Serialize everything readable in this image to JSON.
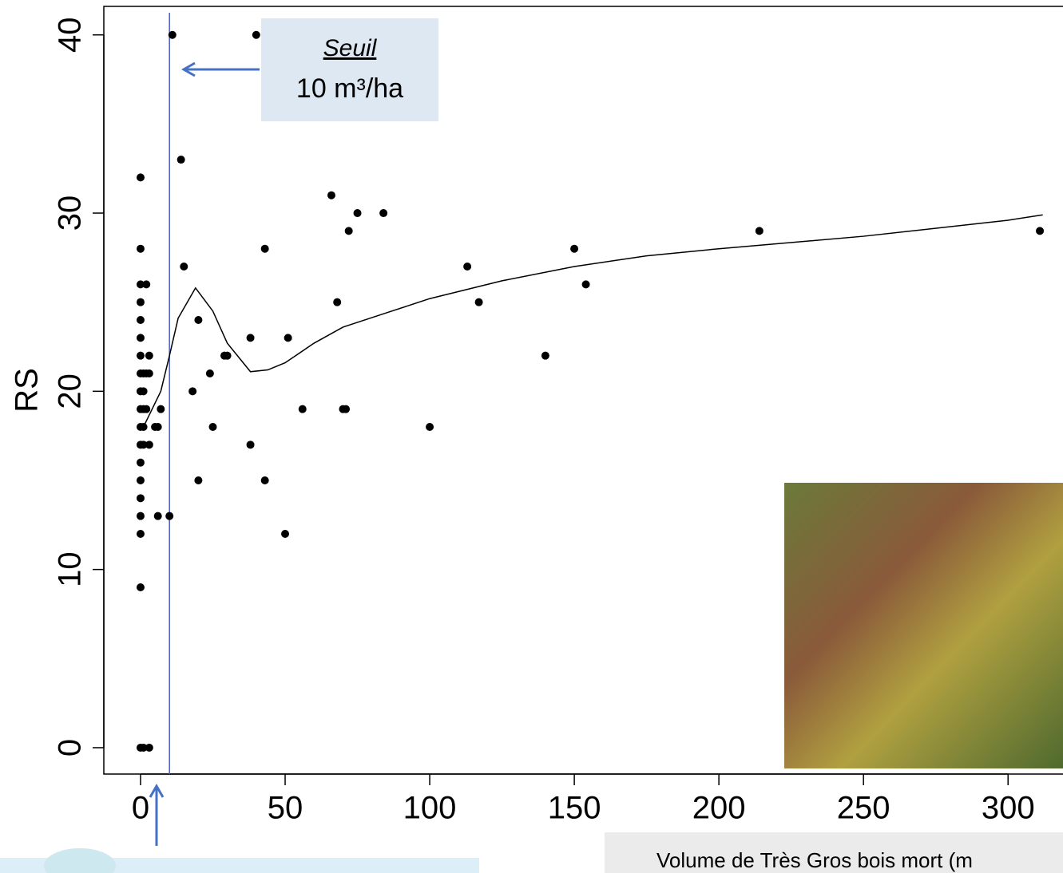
{
  "chart_data": {
    "type": "scatter",
    "ylabel": "RS",
    "xlabel": "Volume de Très Gros bois mort (m",
    "xlim": [
      -12.7,
      319
    ],
    "ylim": [
      -1.48,
      41.6
    ],
    "xticks": [
      0,
      50,
      100,
      150,
      200,
      250,
      300
    ],
    "yticks": [
      0,
      10,
      20,
      30,
      40
    ],
    "points": {
      "color": "#000000",
      "x": [
        0,
        0,
        0,
        2,
        0,
        0,
        0,
        0,
        3,
        0,
        1,
        2,
        3,
        0,
        1,
        0,
        1,
        2,
        7,
        0,
        1,
        5,
        6,
        0,
        1,
        3,
        0,
        0,
        0,
        0,
        6,
        10,
        0,
        0,
        0,
        1,
        3,
        11,
        40,
        14,
        15,
        20,
        18,
        20,
        24,
        25,
        30,
        29,
        38,
        38,
        43,
        43,
        51,
        50,
        56,
        66,
        68,
        70,
        71,
        72,
        75,
        84,
        100,
        113,
        117,
        140,
        150,
        154,
        214,
        311
      ],
      "y": [
        32,
        28,
        26,
        26,
        25,
        24,
        23,
        22,
        22,
        21,
        21,
        21,
        21,
        20,
        20,
        19,
        19,
        19,
        19,
        18,
        18,
        18,
        18,
        17,
        17,
        17,
        16,
        15,
        14,
        13,
        13,
        13,
        12,
        9,
        0,
        0,
        0,
        40,
        40,
        33,
        27,
        24,
        20,
        15,
        21,
        18,
        22,
        22,
        23,
        17,
        28,
        15,
        23,
        12,
        19,
        31,
        25,
        19,
        19,
        29,
        30,
        30,
        18,
        27,
        25,
        22,
        28,
        26,
        29,
        29
      ]
    },
    "smooth": {
      "color": "#000000",
      "x": [
        1,
        4,
        7,
        10,
        13,
        19,
        25,
        30,
        38,
        44,
        50,
        60,
        70,
        85,
        100,
        125,
        150,
        175,
        200,
        250,
        300,
        312
      ],
      "y": [
        18,
        19,
        20,
        22,
        24.1,
        25.8,
        24.5,
        22.7,
        21.1,
        21.2,
        21.6,
        22.7,
        23.6,
        24.4,
        25.2,
        26.2,
        27,
        27.6,
        28,
        28.7,
        29.6,
        29.9
      ]
    },
    "threshold": {
      "value": 10,
      "color": "#4a5fc1"
    },
    "annotation": {
      "title": "Seuil",
      "text": "10 m³/ha"
    }
  }
}
